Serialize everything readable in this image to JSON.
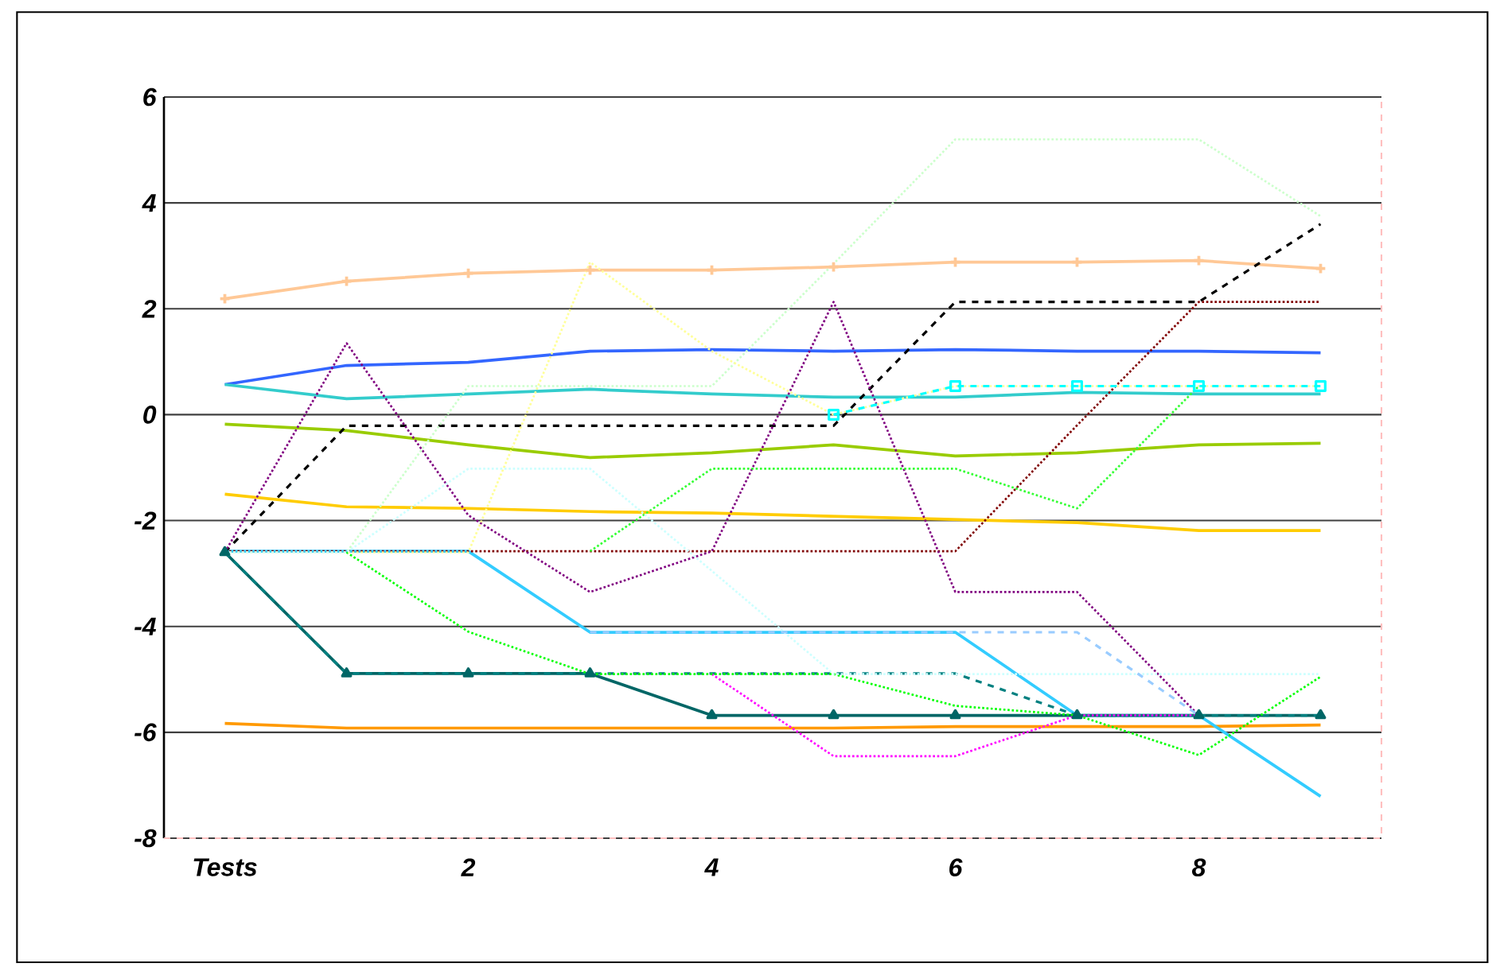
{
  "chart_data": {
    "type": "line",
    "categories": [
      "Tests",
      null,
      "2",
      null,
      "4",
      null,
      "6",
      null,
      "8",
      null
    ],
    "ylim": [
      -8,
      6
    ],
    "yticks": [
      -8,
      -6,
      -4,
      -2,
      0,
      2,
      4,
      6
    ],
    "grid": "y",
    "series": [
      {
        "color": "#ffc896",
        "line_style": "solid",
        "marker": "cross",
        "values": [
          2.19,
          2.52,
          2.67,
          2.73,
          2.73,
          2.79,
          2.88,
          2.88,
          2.91,
          2.76
        ]
      },
      {
        "color": "#3366ff",
        "line_style": "solid",
        "values": [
          0.57,
          0.93,
          0.99,
          1.2,
          1.23,
          1.2,
          1.23,
          1.2,
          1.2,
          1.17
        ]
      },
      {
        "color": "#33cccc",
        "line_style": "solid",
        "values": [
          0.57,
          0.3,
          0.39,
          0.48,
          0.39,
          0.33,
          0.33,
          0.42,
          0.39,
          0.39
        ]
      },
      {
        "color": "#99cc00",
        "line_style": "solid",
        "values": [
          -0.18,
          -0.3,
          -0.57,
          -0.81,
          -0.72,
          -0.57,
          -0.78,
          -0.72,
          -0.57,
          -0.54
        ]
      },
      {
        "color": "#ffcc00",
        "line_style": "solid",
        "values": [
          -1.5,
          -1.74,
          -1.77,
          -1.83,
          -1.86,
          -1.92,
          -1.98,
          -2.04,
          -2.19,
          -2.19
        ]
      },
      {
        "color": "#ff9900",
        "line_style": "solid",
        "values": [
          -5.83,
          -5.92,
          -5.92,
          -5.92,
          -5.92,
          -5.92,
          -5.89,
          -5.89,
          -5.89,
          -5.86
        ]
      },
      {
        "color": "#33ccff",
        "line_style": "solid",
        "values": [
          -2.58,
          -2.58,
          -2.58,
          -4.11,
          -4.11,
          -4.11,
          -4.11,
          -5.68,
          -5.68,
          -7.21
        ]
      },
      {
        "color": "#006666",
        "line_style": "solid",
        "marker": "triangle",
        "values": [
          -2.6,
          -4.89,
          -4.89,
          -4.89,
          -5.68,
          -5.68,
          -5.68,
          -5.68,
          -5.68,
          -5.68
        ]
      },
      {
        "color": "#008080",
        "line_style": "dashed",
        "values": [
          -2.6,
          -4.89,
          -4.89,
          -4.89,
          -4.89,
          -4.89,
          -4.89,
          -5.68,
          -5.68,
          -5.68
        ]
      },
      {
        "color": "#000000",
        "line_style": "dashed",
        "values": [
          -2.6,
          -0.21,
          -0.21,
          -0.21,
          -0.21,
          -0.21,
          2.13,
          2.13,
          2.13,
          3.6
        ]
      },
      {
        "color": "#800000",
        "line_style": "dotted",
        "values": [
          -2.58,
          -2.58,
          -2.58,
          -2.58,
          -2.58,
          -2.58,
          -2.58,
          -0.2,
          2.13,
          2.13
        ]
      },
      {
        "color": "#800080",
        "line_style": "dotted",
        "values": [
          -2.6,
          1.35,
          -1.9,
          -3.35,
          -2.58,
          2.13,
          -3.35,
          -3.35,
          -5.68,
          null
        ]
      },
      {
        "color": "#ff00ff",
        "line_style": "dotted",
        "values": [
          null,
          null,
          null,
          null,
          -4.9,
          -6.45,
          -6.45,
          -5.68,
          -5.68,
          null
        ]
      },
      {
        "color": "#00ff00",
        "line_style": "dotted",
        "values": [
          null,
          -2.6,
          -4.1,
          -4.9,
          -4.9,
          -4.9,
          -5.5,
          -5.68,
          -6.43,
          -4.95
        ]
      },
      {
        "color": "#33ff33",
        "line_style": "dotted",
        "values": [
          null,
          null,
          null,
          -2.58,
          -1.02,
          -1.02,
          -1.02,
          -1.77,
          0.54,
          null
        ]
      },
      {
        "color": "#ccffcc",
        "line_style": "dotted",
        "values": [
          -2.6,
          -2.6,
          0.54,
          0.54,
          0.54,
          2.85,
          5.2,
          5.2,
          5.2,
          3.75
        ]
      },
      {
        "color": "#ffff99",
        "line_style": "dotted",
        "values": [
          -2.6,
          -2.6,
          -2.6,
          2.88,
          1.2,
          0,
          0.54,
          0.54,
          0.54,
          0.54
        ]
      },
      {
        "color": "#00ffff",
        "line_style": "dashed",
        "marker": "square",
        "values": [
          null,
          null,
          null,
          null,
          null,
          0,
          0.54,
          0.54,
          0.54,
          0.54
        ]
      },
      {
        "color": "#ccffff",
        "line_style": "dotted",
        "values": [
          -2.6,
          -2.6,
          -1.02,
          -1.02,
          -2.95,
          -4.9,
          -4.9,
          -4.9,
          -4.9,
          -4.9
        ]
      },
      {
        "color": "#99ccff",
        "line_style": "dashed",
        "values": [
          null,
          null,
          null,
          -4.11,
          -4.11,
          -4.11,
          -4.11,
          -4.11,
          -5.68,
          null
        ]
      }
    ]
  }
}
